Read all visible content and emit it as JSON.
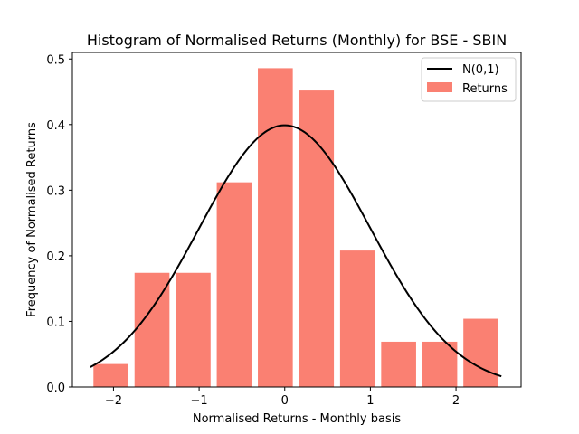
{
  "chart_data": {
    "type": "bar",
    "title": "Histogram of Normalised Returns (Monthly) for BSE - SBIN",
    "xlabel": "Normalised Returns - Monthly basis",
    "ylabel": "Frequency of Normalised Returns",
    "xlim": [
      -2.48,
      2.76
    ],
    "ylim": [
      0,
      0.51
    ],
    "xticks": [
      -2,
      -1,
      0,
      1,
      2
    ],
    "xtick_labels": [
      "−2",
      "−1",
      "0",
      "1",
      "2"
    ],
    "yticks": [
      0.0,
      0.1,
      0.2,
      0.3,
      0.4,
      0.5
    ],
    "ytick_labels": [
      "0.0",
      "0.1",
      "0.2",
      "0.3",
      "0.4",
      "0.5"
    ],
    "grid": false,
    "legend_position": "top-right",
    "histogram": {
      "name": "Returns",
      "color": "#fa8072",
      "bin_edges": [
        -2.27,
        -1.79,
        -1.31,
        -0.83,
        -0.35,
        0.13,
        0.61,
        1.09,
        1.57,
        2.05,
        2.53
      ],
      "values": [
        0.035,
        0.174,
        0.174,
        0.312,
        0.486,
        0.452,
        0.208,
        0.069,
        0.069,
        0.104
      ],
      "rwidth": 0.85
    },
    "line": {
      "name": "N(0,1)",
      "color": "#000000",
      "x_range": [
        -2.27,
        2.53
      ],
      "function": "standard normal pdf"
    }
  }
}
